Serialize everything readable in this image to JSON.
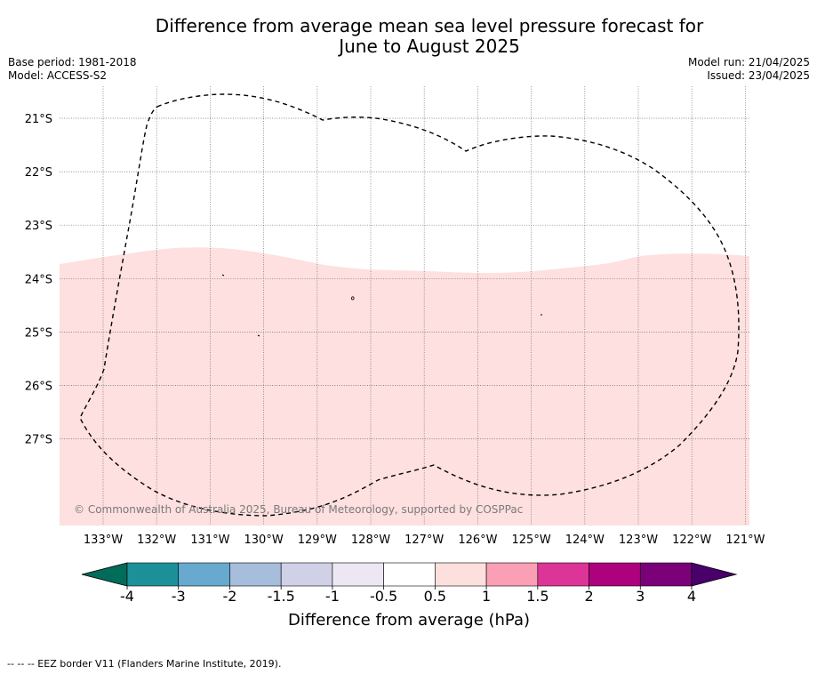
{
  "title": "Difference from average mean sea level pressure forecast for\nJune to August 2025",
  "header": {
    "base_period": "Base period: 1981-2018",
    "model": "Model: ACCESS-S2",
    "model_run": "Model run: 21/04/2025",
    "issued": "Issued: 23/04/2025"
  },
  "map": {
    "lat_labels": [
      "21°S",
      "22°S",
      "23°S",
      "24°S",
      "25°S",
      "26°S",
      "27°S"
    ],
    "lon_labels": [
      "133°W",
      "132°W",
      "131°W",
      "130°W",
      "129°W",
      "128°W",
      "127°W",
      "126°W",
      "125°W",
      "124°W",
      "123°W",
      "122°W",
      "121°W"
    ],
    "anomaly_fill_color": "#fde0df",
    "anomaly_band": "0.5 to 1",
    "copyright": "© Commonwealth of Australia 2025, Bureau of Meteorology, supported by COSPPac"
  },
  "colorbar": {
    "label": "Difference from average (hPa)",
    "ticks": [
      "-4",
      "-3",
      "-2",
      "-1.5",
      "-1",
      "-0.5",
      "0.5",
      "1",
      "1.5",
      "2",
      "3",
      "4"
    ],
    "colors": [
      "#1c9099",
      "#67a9cf",
      "#a6bddb",
      "#d0d1e6",
      "#ece7f2",
      "#ffffff",
      "#fde0dd",
      "#fa9fb5",
      "#dd3497",
      "#ae017e",
      "#7a0177"
    ],
    "under_color": "#016c59",
    "over_color": "#49006a"
  },
  "footer": "--  --  -- EEZ border V11 (Flanders Marine Institute, 2019)."
}
